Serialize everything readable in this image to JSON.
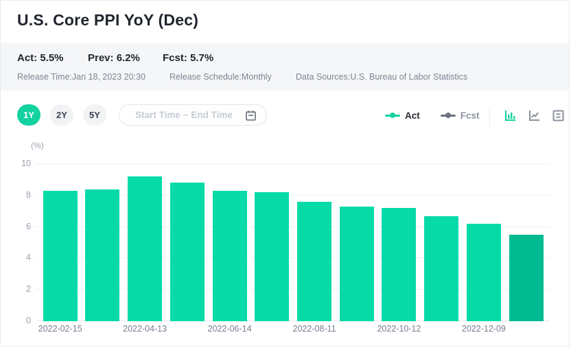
{
  "header": {
    "title": "U.S. Core PPI YoY (Dec)"
  },
  "stats": {
    "act": "Act: 5.5%",
    "prev": "Prev: 6.2%",
    "fcst": "Fcst: 5.7%"
  },
  "meta": {
    "release_time": "Release Time:Jan 18, 2023 20:30",
    "release_schedule": "Release Schedule:Monthly",
    "data_sources": "Data Sources:U.S. Bureau of Labor Statistics"
  },
  "controls": {
    "ranges": [
      {
        "label": "1Y",
        "active": true
      },
      {
        "label": "2Y",
        "active": false
      },
      {
        "label": "5Y",
        "active": false
      }
    ],
    "date_placeholder": "Start Time ~ End Time"
  },
  "legend": [
    {
      "name": "Act",
      "color": "#12d2a0"
    },
    {
      "name": "Fcst",
      "color": "#6b7280"
    }
  ],
  "view_modes": [
    "bar-chart",
    "line-chart",
    "data-table"
  ],
  "theme": {
    "accent": "#12d2a0",
    "bar": "#06dba8",
    "bar_last": "#00bb8f",
    "band_bg": "#f5f6f8",
    "grid": "#eef0f3",
    "axis_text": "#9aa1ae",
    "muted_text": "#7d8492",
    "dark_text": "#21252e",
    "pill_bg": "#f2f3f5",
    "border": "#e9ebef",
    "placeholder": "#c5cad4",
    "icon_gray": "#8a909c"
  },
  "chart_data": {
    "type": "bar",
    "title": "U.S. Core PPI YoY (Dec)",
    "ylabel": "(%)",
    "ylim": [
      0,
      10
    ],
    "yticks": [
      0,
      2,
      4,
      6,
      8,
      10
    ],
    "grid": true,
    "series_name": "Act",
    "values": [
      8.3,
      8.4,
      9.2,
      8.8,
      8.3,
      8.2,
      7.6,
      7.3,
      7.2,
      6.7,
      6.2,
      5.5
    ],
    "x_tick_labels": [
      "2022-02-15",
      "2022-04-13",
      "2022-06-14",
      "2022-08-11",
      "2022-10-12",
      "2022-12-09"
    ],
    "x_tick_bar_indices": [
      0,
      2,
      4,
      6,
      8,
      10
    ],
    "highlight_last_bar": true,
    "legend_position": "top-right"
  }
}
